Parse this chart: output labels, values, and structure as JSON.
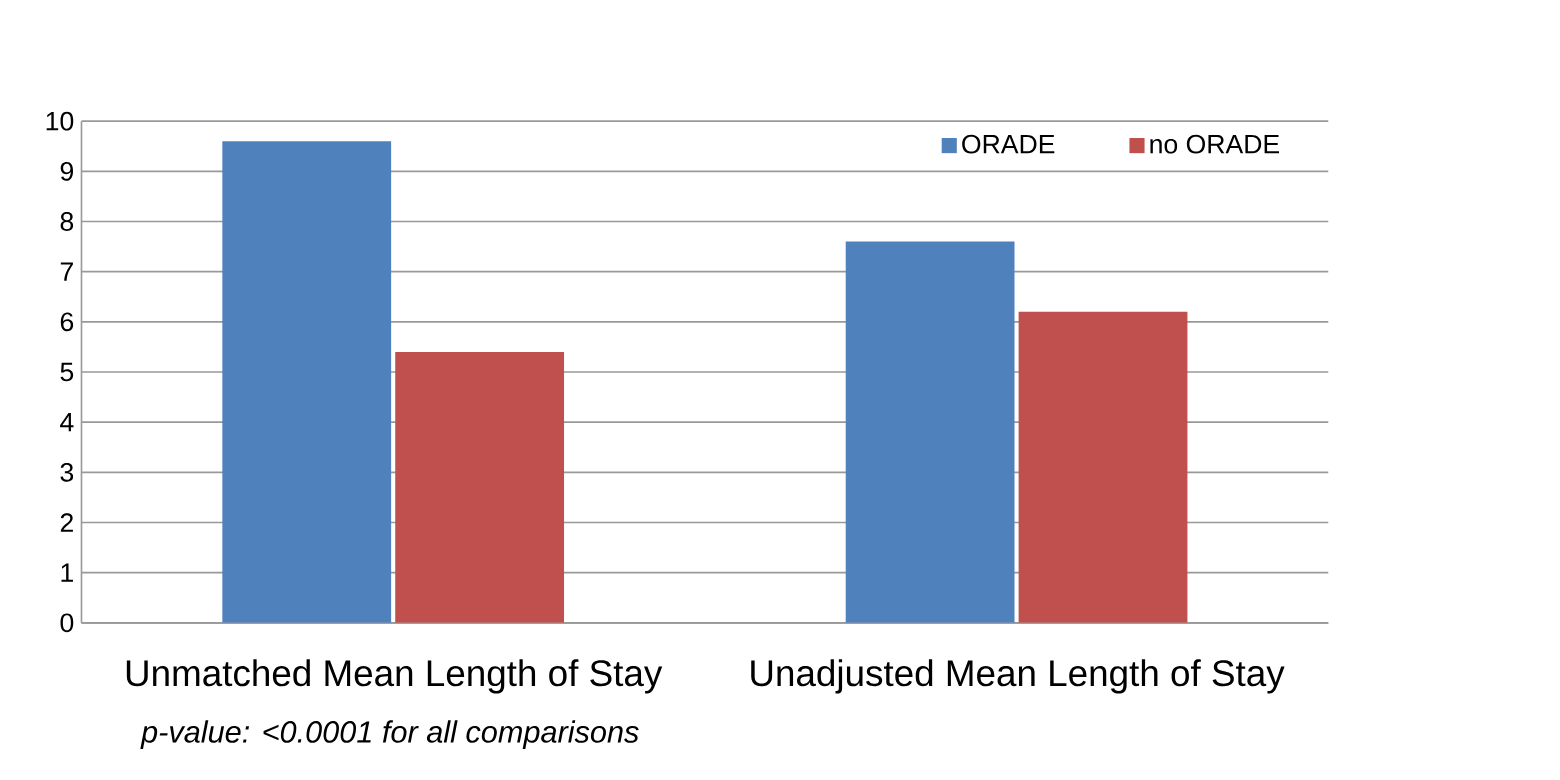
{
  "chart_data": {
    "type": "bar",
    "categories": [
      "Unmatched Mean Length of Stay",
      "Unadjusted Mean Length of Stay"
    ],
    "series": [
      {
        "name": "ORADE",
        "color": "#4f81bd",
        "values": [
          9.6,
          7.6
        ]
      },
      {
        "name": "no ORADE",
        "color": "#c0504d",
        "values": [
          5.4,
          6.2
        ]
      }
    ],
    "ylim": [
      0,
      10
    ],
    "yticks": [
      0,
      1,
      2,
      3,
      4,
      5,
      6,
      7,
      8,
      9,
      10
    ],
    "grid": "y",
    "legend": "top right",
    "annotations": [
      "*p-value: <0.0001 for all comparisons*"
    ]
  }
}
